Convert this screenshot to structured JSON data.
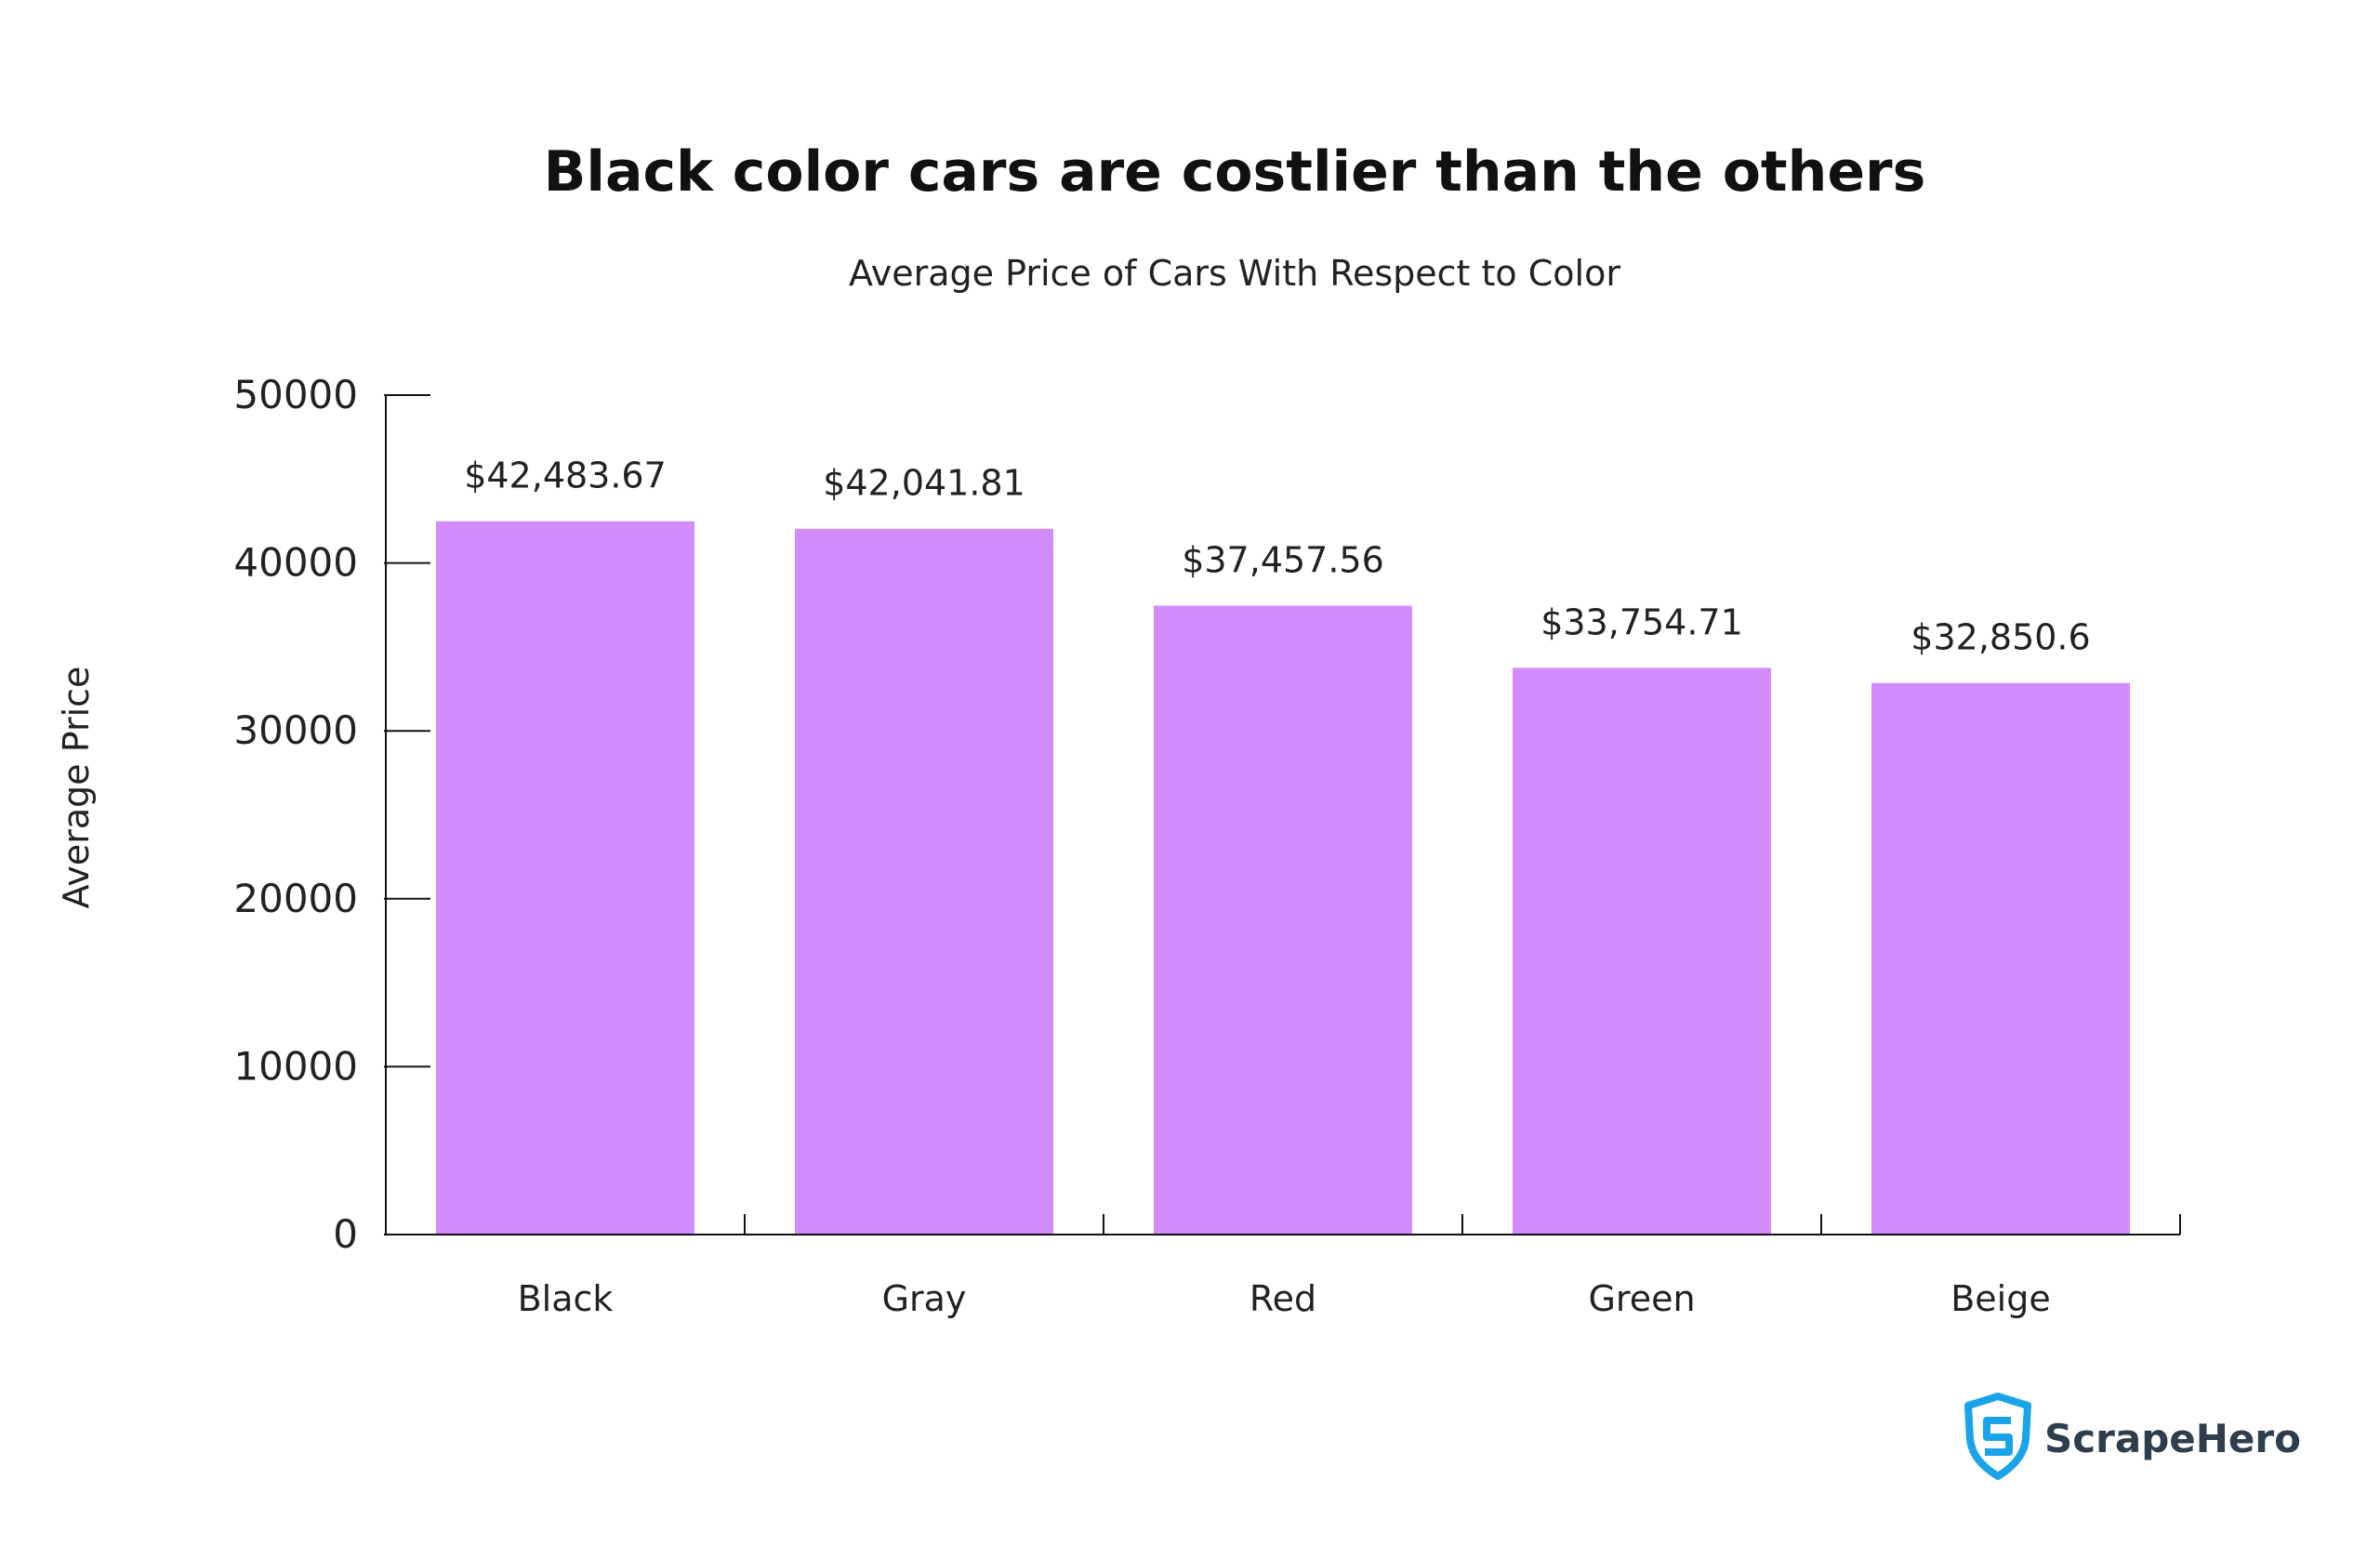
{
  "chart_data": {
    "type": "bar",
    "title": "Black color cars are costlier than the others",
    "subtitle": "Average Price of Cars With Respect to Color",
    "xlabel": "",
    "ylabel": "Average Price",
    "categories": [
      "Black",
      "Gray",
      "Red",
      "Green",
      "Beige"
    ],
    "values": [
      42483.67,
      42041.81,
      37457.56,
      33754.71,
      32850.6
    ],
    "data_labels": [
      "$42,483.67",
      "$42,041.81",
      "$37,457.56",
      "$33,754.71",
      "$32,850.6"
    ],
    "ylim": [
      0,
      50000
    ],
    "yticks": [
      0,
      10000,
      20000,
      30000,
      40000,
      50000
    ],
    "ytick_labels": [
      "0",
      "10000",
      "20000",
      "30000",
      "40000",
      "50000"
    ],
    "bar_color": "#d38cfb",
    "grid": false
  },
  "brand": {
    "name": "ScrapeHero",
    "icon": "shield-s-icon",
    "icon_color": "#1aa3e8"
  }
}
